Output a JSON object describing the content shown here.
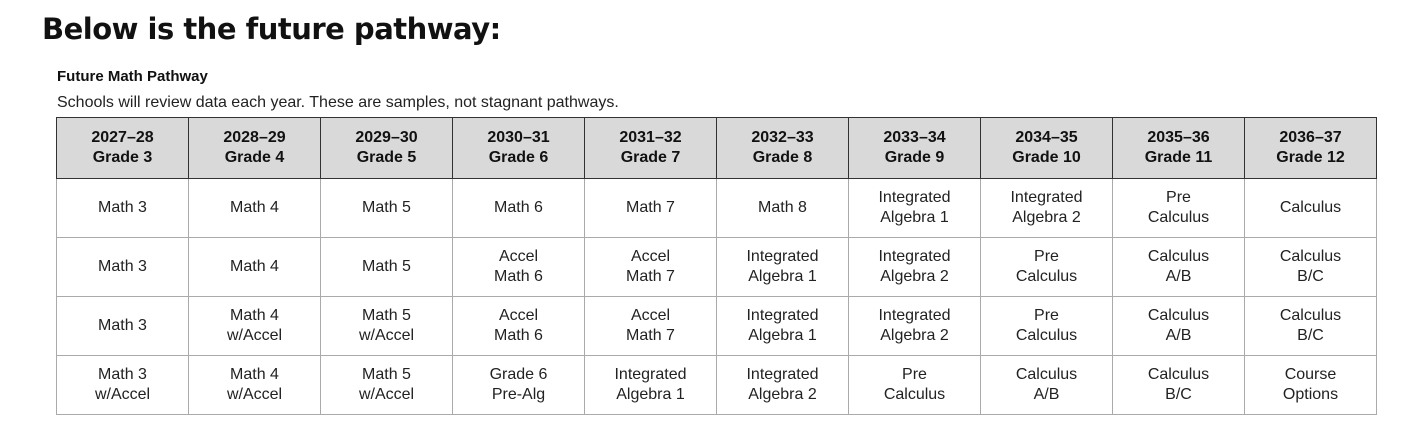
{
  "header": {
    "title": "Below is the future pathway:"
  },
  "pathway": {
    "title": "Future Math Pathway",
    "note": "Schools will review data each year. These are samples, not stagnant pathways."
  },
  "table": {
    "columns": [
      {
        "year": "2027–28",
        "grade": "Grade 3"
      },
      {
        "year": "2028–29",
        "grade": "Grade 4"
      },
      {
        "year": "2029–30",
        "grade": "Grade 5"
      },
      {
        "year": "2030–31",
        "grade": "Grade 6"
      },
      {
        "year": "2031–32",
        "grade": "Grade 7"
      },
      {
        "year": "2032–33",
        "grade": "Grade 8"
      },
      {
        "year": "2033–34",
        "grade": "Grade 9"
      },
      {
        "year": "2034–35",
        "grade": "Grade 10"
      },
      {
        "year": "2035–36",
        "grade": "Grade 11"
      },
      {
        "year": "2036–37",
        "grade": "Grade 12"
      }
    ],
    "rows": [
      [
        [
          "Math 3"
        ],
        [
          "Math 4"
        ],
        [
          "Math 5"
        ],
        [
          "Math 6"
        ],
        [
          "Math 7"
        ],
        [
          "Math 8"
        ],
        [
          "Integrated",
          "Algebra 1"
        ],
        [
          "Integrated",
          "Algebra 2"
        ],
        [
          "Pre",
          "Calculus"
        ],
        [
          "Calculus"
        ]
      ],
      [
        [
          "Math 3"
        ],
        [
          "Math 4"
        ],
        [
          "Math 5"
        ],
        [
          "Accel",
          "Math 6"
        ],
        [
          "Accel",
          "Math 7"
        ],
        [
          "Integrated",
          "Algebra 1"
        ],
        [
          "Integrated",
          "Algebra 2"
        ],
        [
          "Pre",
          "Calculus"
        ],
        [
          "Calculus",
          "A/B"
        ],
        [
          "Calculus",
          "B/C"
        ]
      ],
      [
        [
          "Math 3"
        ],
        [
          "Math 4",
          "w/Accel"
        ],
        [
          "Math 5",
          "w/Accel"
        ],
        [
          "Accel",
          "Math 6"
        ],
        [
          "Accel",
          "Math 7"
        ],
        [
          "Integrated",
          "Algebra 1"
        ],
        [
          "Integrated",
          "Algebra 2"
        ],
        [
          "Pre",
          "Calculus"
        ],
        [
          "Calculus",
          "A/B"
        ],
        [
          "Calculus",
          "B/C"
        ]
      ],
      [
        [
          "Math 3",
          "w/Accel"
        ],
        [
          "Math 4",
          "w/Accel"
        ],
        [
          "Math 5",
          "w/Accel"
        ],
        [
          "Grade 6",
          "Pre-Alg"
        ],
        [
          "Integrated",
          "Algebra 1"
        ],
        [
          "Integrated",
          "Algebra 2"
        ],
        [
          "Pre",
          "Calculus"
        ],
        [
          "Calculus",
          "A/B"
        ],
        [
          "Calculus",
          "B/C"
        ],
        [
          "Course",
          "Options"
        ]
      ]
    ]
  }
}
